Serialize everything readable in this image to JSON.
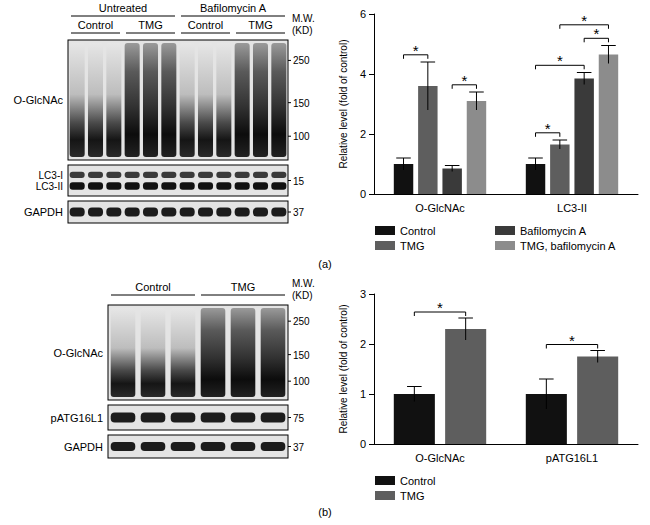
{
  "panel_labels": [
    "(a)",
    "(b)"
  ],
  "blots": [
    {
      "headers": [
        {
          "text": "Untreated",
          "lanes": 6
        },
        {
          "text": "Bafilomycin A",
          "lanes": 6
        }
      ],
      "groups": [
        {
          "text": "Control",
          "lanes": 3
        },
        {
          "text": "TMG",
          "lanes": 3
        },
        {
          "text": "Control",
          "lanes": 3
        },
        {
          "text": "TMG",
          "lanes": 3
        }
      ],
      "mw_title": [
        "M.W.",
        "(KD)"
      ],
      "rows": [
        {
          "labels": [
            "O-GlcNAc"
          ],
          "markers": [
            250,
            150,
            100
          ]
        },
        {
          "labels": [
            "LC3-I",
            "LC3-II"
          ],
          "markers": [
            15
          ]
        },
        {
          "labels": [
            "GAPDH"
          ],
          "markers": [
            37
          ]
        }
      ]
    },
    {
      "headers": [],
      "groups": [
        {
          "text": "Control",
          "lanes": 3
        },
        {
          "text": "TMG",
          "lanes": 3
        }
      ],
      "mw_title": [
        "M.W.",
        "(KD)"
      ],
      "rows": [
        {
          "labels": [
            "O-GlcNAc"
          ],
          "markers": [
            250,
            150,
            100
          ]
        },
        {
          "labels": [
            "pATG16L1"
          ],
          "markers": [
            75
          ]
        },
        {
          "labels": [
            "GAPDH"
          ],
          "markers": [
            37
          ]
        }
      ]
    }
  ],
  "chart_data": [
    {
      "type": "bar",
      "categories": [
        "O-GlcNAc",
        "LC3-II"
      ],
      "ylabel": "Relative level (fold of control)",
      "ylim": [
        0,
        6
      ],
      "yticks": [
        0,
        2,
        4,
        6
      ],
      "grid": false,
      "legend": "bottom",
      "series": [
        {
          "name": "Control",
          "color": "#111111",
          "values": [
            1.0,
            1.0
          ],
          "errors": [
            0.2,
            0.2
          ]
        },
        {
          "name": "TMG",
          "color": "#5e5e5e",
          "values": [
            3.6,
            1.65
          ],
          "errors": [
            0.8,
            0.15
          ]
        },
        {
          "name": "Bafilomycin A",
          "color": "#3a3a3a",
          "values": [
            0.85,
            3.85
          ],
          "errors": [
            0.1,
            0.2
          ]
        },
        {
          "name": "TMG, bafilomycin A",
          "color": "#8c8c8c",
          "values": [
            3.1,
            4.65
          ],
          "errors": [
            0.3,
            0.3
          ]
        }
      ],
      "annotations": [
        {
          "category": "O-GlcNAc",
          "from": "Control",
          "to": "TMG",
          "text": "*"
        },
        {
          "category": "O-GlcNAc",
          "from": "Bafilomycin A",
          "to": "TMG, bafilomycin A",
          "text": "*"
        },
        {
          "category": "LC3-II",
          "from": "Control",
          "to": "TMG",
          "text": "*"
        },
        {
          "category": "LC3-II",
          "from": "Control",
          "to": "Bafilomycin A",
          "text": "*"
        },
        {
          "category": "LC3-II",
          "from": "Bafilomycin A",
          "to": "TMG, bafilomycin A",
          "text": "*"
        },
        {
          "category": "LC3-II",
          "from": "TMG",
          "to": "TMG, bafilomycin A",
          "text": "*"
        }
      ]
    },
    {
      "type": "bar",
      "categories": [
        "O-GlcNAc",
        "pATG16L1"
      ],
      "ylabel": "Relative level (fold of control)",
      "ylim": [
        0,
        3
      ],
      "yticks": [
        0,
        1,
        2,
        3
      ],
      "grid": false,
      "legend": "bottom",
      "series": [
        {
          "name": "Control",
          "color": "#111111",
          "values": [
            1.0,
            1.0
          ],
          "errors": [
            0.15,
            0.3
          ]
        },
        {
          "name": "TMG",
          "color": "#5e5e5e",
          "values": [
            2.3,
            1.75
          ],
          "errors": [
            0.22,
            0.12
          ]
        }
      ],
      "annotations": [
        {
          "category": "O-GlcNAc",
          "from": "Control",
          "to": "TMG",
          "text": "*"
        },
        {
          "category": "pATG16L1",
          "from": "Control",
          "to": "TMG",
          "text": "*"
        }
      ]
    }
  ]
}
